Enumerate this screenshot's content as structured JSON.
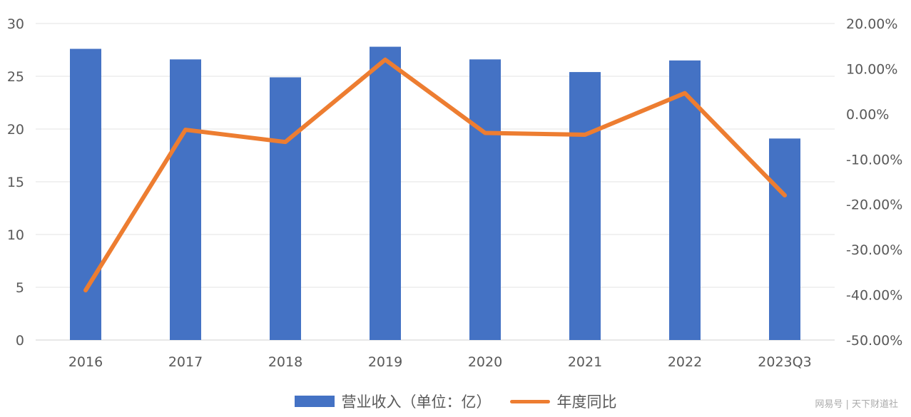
{
  "chart_data": {
    "type": "bar",
    "categories": [
      "2016",
      "2017",
      "2018",
      "2019",
      "2020",
      "2021",
      "2022",
      "2023Q3"
    ],
    "series": [
      {
        "name": "营业收入（单位：亿）",
        "type": "bar",
        "axis": "left",
        "color": "#4472C4",
        "values": [
          27.6,
          26.6,
          24.9,
          27.8,
          26.6,
          25.4,
          26.5,
          19.1
        ]
      },
      {
        "name": "年度同比",
        "type": "line",
        "axis": "right",
        "color": "#ED7D31",
        "values": [
          -39.0,
          -3.5,
          -6.2,
          12.0,
          -4.2,
          -4.6,
          4.6,
          -18.0
        ]
      }
    ],
    "y_left": {
      "min": 0,
      "max": 30,
      "ticks": [
        "0",
        "5",
        "10",
        "15",
        "20",
        "25",
        "30"
      ]
    },
    "y_right": {
      "min": -50,
      "max": 20,
      "ticks": [
        "-50.00%",
        "-40.00%",
        "-30.00%",
        "-20.00%",
        "-10.00%",
        "0.00%",
        "10.00%",
        "20.00%"
      ]
    },
    "grid": true,
    "legend_position": "bottom"
  },
  "watermark": "网易号 | 天下财道社"
}
